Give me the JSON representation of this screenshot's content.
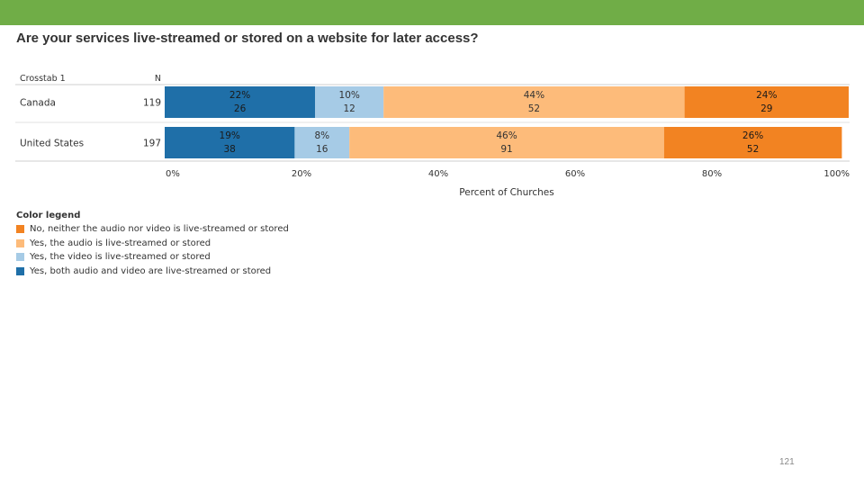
{
  "slide": {
    "title": "Are your services live-streamed or stored on a website for later access?",
    "page_number": "121"
  },
  "colors": {
    "both": "#1f6fa8",
    "video": "#a6cbe6",
    "audio": "#fdbb7a",
    "neither": "#f28322",
    "band": "#70ad47"
  },
  "chart_data": {
    "type": "bar",
    "orientation": "horizontal",
    "stacked": true,
    "table_header": {
      "row_label": "Crosstab 1",
      "n_label": "N"
    },
    "categories": [
      "Canada",
      "United States"
    ],
    "n": [
      "119",
      "197"
    ],
    "series": [
      {
        "name": "Yes, both audio and video are live-streamed or stored",
        "key": "both",
        "values": [
          22,
          19
        ],
        "labels": [
          "22%",
          "19%"
        ],
        "counts": [
          "26",
          "38"
        ]
      },
      {
        "name": "Yes, the video is live-streamed or stored",
        "key": "video",
        "values": [
          10,
          8
        ],
        "labels": [
          "10%",
          "8%"
        ],
        "counts": [
          "12",
          "16"
        ]
      },
      {
        "name": "Yes, the audio is live-streamed or stored",
        "key": "audio",
        "values": [
          44,
          46
        ],
        "labels": [
          "44%",
          "46%"
        ],
        "counts": [
          "52",
          "91"
        ]
      },
      {
        "name": "No, neither the audio nor video is live-streamed or stored",
        "key": "neither",
        "values": [
          24,
          26
        ],
        "labels": [
          "24%",
          "26%"
        ],
        "counts": [
          "29",
          "52"
        ]
      }
    ],
    "xlabel": "Percent of Churches",
    "xlim": [
      0,
      100
    ],
    "xticks": [
      "0%",
      "20%",
      "40%",
      "60%",
      "80%",
      "100%"
    ],
    "legend": {
      "title": "Color legend",
      "placement": "bottom-left",
      "items": [
        {
          "key": "neither",
          "label": "No, neither the audio nor video is live-streamed or stored"
        },
        {
          "key": "audio",
          "label": "Yes, the audio is live-streamed or stored"
        },
        {
          "key": "video",
          "label": "Yes, the video is live-streamed or stored"
        },
        {
          "key": "both",
          "label": "Yes, both audio and video are live-streamed or stored"
        }
      ]
    }
  }
}
